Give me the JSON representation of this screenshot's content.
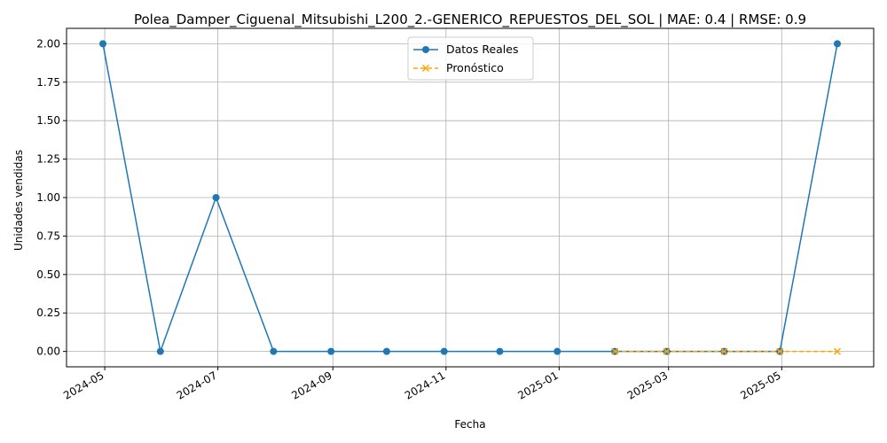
{
  "chart_data": {
    "type": "line",
    "title": "Polea_Damper_Ciguenal_Mitsubishi_L200_2.-GENERICO_REPUESTOS_DEL_SOL | MAE: 0.4 | RMSE: 0.9",
    "xlabel": "Fecha",
    "ylabel": "Unidades vendidas",
    "ylim": [
      -0.1,
      2.1
    ],
    "yticks": [
      "0.00",
      "0.25",
      "0.50",
      "0.75",
      "1.00",
      "1.25",
      "1.50",
      "1.75",
      "2.00"
    ],
    "xticks": [
      "2024-05",
      "2024-07",
      "2024-09",
      "2024-11",
      "2025-01",
      "2025-03",
      "2025-05"
    ],
    "grid": true,
    "legend_position": "upper center",
    "series": [
      {
        "name": "Datos Reales",
        "color": "#1f77b4",
        "style": "solid",
        "marker": "circle",
        "x": [
          "2024-04-30",
          "2024-05-31",
          "2024-06-30",
          "2024-07-31",
          "2024-08-31",
          "2024-09-30",
          "2024-10-31",
          "2024-11-30",
          "2024-12-31",
          "2025-01-31",
          "2025-02-28",
          "2025-03-31",
          "2025-04-30",
          "2025-05-31"
        ],
        "values": [
          2,
          0,
          1,
          0,
          0,
          0,
          0,
          0,
          0,
          0,
          0,
          0,
          0,
          2
        ]
      },
      {
        "name": "Pronóstico",
        "color": "#ffa500",
        "style": "dashed",
        "marker": "x",
        "x": [
          "2025-01-31",
          "2025-02-28",
          "2025-03-31",
          "2025-04-30",
          "2025-05-31"
        ],
        "values": [
          0,
          0,
          0,
          0,
          0
        ]
      }
    ]
  }
}
